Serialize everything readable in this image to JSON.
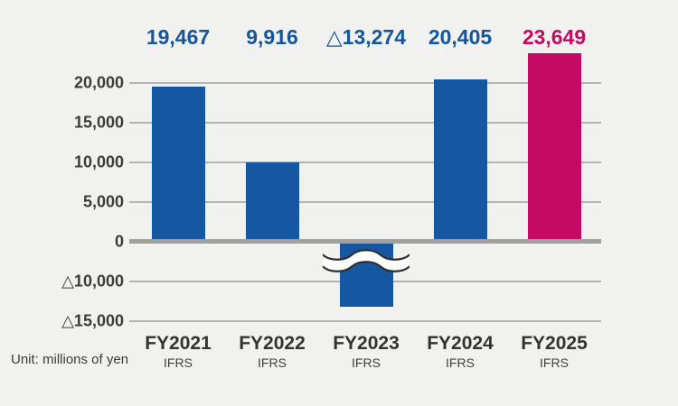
{
  "chart_data": {
    "type": "bar",
    "title": "",
    "unit_label": "Unit: millions of yen",
    "categories": [
      "FY2021",
      "FY2022",
      "FY2023",
      "FY2024",
      "FY2025"
    ],
    "category_sublabels": [
      "IFRS",
      "IFRS",
      "IFRS",
      "IFRS",
      "IFRS"
    ],
    "values": [
      19467,
      9916,
      -13274,
      20405,
      23649
    ],
    "value_labels": [
      "19,467",
      "9,916",
      "△13,274",
      "20,405",
      "23,649"
    ],
    "bar_colors": [
      "#1557a0",
      "#1557a0",
      "#1557a0",
      "#1557a0",
      "#c40a64"
    ],
    "value_label_colors": [
      "#15569b",
      "#15569b",
      "#15569b",
      "#15569b",
      "#c40a64"
    ],
    "highlighted_bar_index": 4,
    "axis_break_bar_index": 2,
    "y_axis": {
      "ticks": [
        {
          "label": "20,000",
          "value": 20000
        },
        {
          "label": "15,000",
          "value": 15000
        },
        {
          "label": "10,000",
          "value": 10000
        },
        {
          "label": "5,000",
          "value": 5000
        },
        {
          "label": "0",
          "value": 0
        },
        {
          "label": "△10,000",
          "value": -10000
        },
        {
          "label": "△15,000",
          "value": -15000
        }
      ],
      "axis_break_between": [
        0,
        -10000
      ],
      "grid": true
    },
    "legend": null
  },
  "colors": {
    "background": "#f1f1ef",
    "gridline": "#b3b3b1",
    "zero_line": "#a0a09e",
    "axis_text": "#3c3c3c",
    "bar_blue": "#1557a0",
    "bar_magenta": "#c40a64",
    "break_stroke": "#2f2f2f",
    "break_fill": "#fdfdfc"
  }
}
